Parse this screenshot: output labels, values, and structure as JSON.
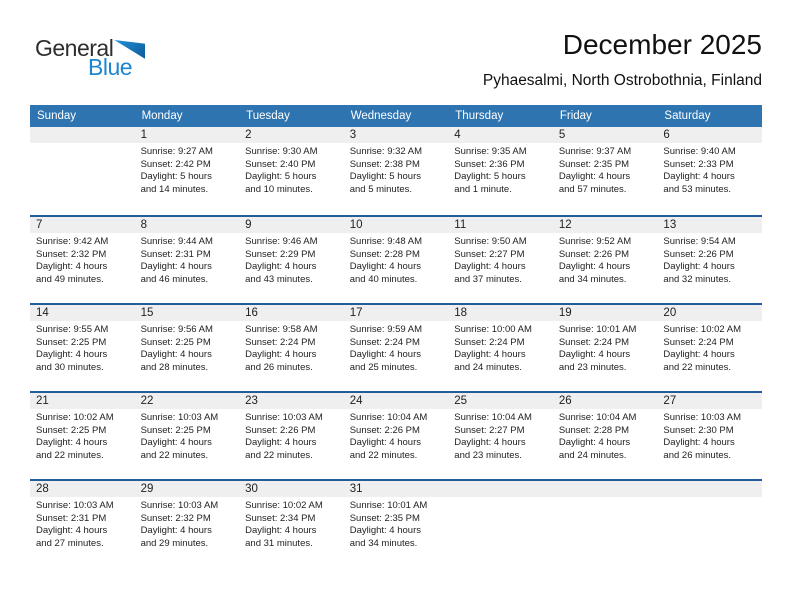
{
  "logo": {
    "part1": "General",
    "part2": "Blue"
  },
  "header": {
    "title": "December 2025",
    "subtitle": "Pyhaesalmi, North Ostrobothnia, Finland"
  },
  "colors": {
    "header_bar": "#2E74B1",
    "week_divider": "#1F5C99",
    "day_band": "#EFEFEF",
    "logo_blue": "#1D86CF"
  },
  "calendar": {
    "day_headers": [
      "Sunday",
      "Monday",
      "Tuesday",
      "Wednesday",
      "Thursday",
      "Friday",
      "Saturday"
    ],
    "weeks": [
      {
        "cells": [
          {
            "day": "",
            "lines": []
          },
          {
            "day": "1",
            "lines": [
              "Sunrise: 9:27 AM",
              "Sunset: 2:42 PM",
              "Daylight: 5 hours",
              "and 14 minutes."
            ]
          },
          {
            "day": "2",
            "lines": [
              "Sunrise: 9:30 AM",
              "Sunset: 2:40 PM",
              "Daylight: 5 hours",
              "and 10 minutes."
            ]
          },
          {
            "day": "3",
            "lines": [
              "Sunrise: 9:32 AM",
              "Sunset: 2:38 PM",
              "Daylight: 5 hours",
              "and 5 minutes."
            ]
          },
          {
            "day": "4",
            "lines": [
              "Sunrise: 9:35 AM",
              "Sunset: 2:36 PM",
              "Daylight: 5 hours",
              "and 1 minute."
            ]
          },
          {
            "day": "5",
            "lines": [
              "Sunrise: 9:37 AM",
              "Sunset: 2:35 PM",
              "Daylight: 4 hours",
              "and 57 minutes."
            ]
          },
          {
            "day": "6",
            "lines": [
              "Sunrise: 9:40 AM",
              "Sunset: 2:33 PM",
              "Daylight: 4 hours",
              "and 53 minutes."
            ]
          }
        ]
      },
      {
        "cells": [
          {
            "day": "7",
            "lines": [
              "Sunrise: 9:42 AM",
              "Sunset: 2:32 PM",
              "Daylight: 4 hours",
              "and 49 minutes."
            ]
          },
          {
            "day": "8",
            "lines": [
              "Sunrise: 9:44 AM",
              "Sunset: 2:31 PM",
              "Daylight: 4 hours",
              "and 46 minutes."
            ]
          },
          {
            "day": "9",
            "lines": [
              "Sunrise: 9:46 AM",
              "Sunset: 2:29 PM",
              "Daylight: 4 hours",
              "and 43 minutes."
            ]
          },
          {
            "day": "10",
            "lines": [
              "Sunrise: 9:48 AM",
              "Sunset: 2:28 PM",
              "Daylight: 4 hours",
              "and 40 minutes."
            ]
          },
          {
            "day": "11",
            "lines": [
              "Sunrise: 9:50 AM",
              "Sunset: 2:27 PM",
              "Daylight: 4 hours",
              "and 37 minutes."
            ]
          },
          {
            "day": "12",
            "lines": [
              "Sunrise: 9:52 AM",
              "Sunset: 2:26 PM",
              "Daylight: 4 hours",
              "and 34 minutes."
            ]
          },
          {
            "day": "13",
            "lines": [
              "Sunrise: 9:54 AM",
              "Sunset: 2:26 PM",
              "Daylight: 4 hours",
              "and 32 minutes."
            ]
          }
        ]
      },
      {
        "cells": [
          {
            "day": "14",
            "lines": [
              "Sunrise: 9:55 AM",
              "Sunset: 2:25 PM",
              "Daylight: 4 hours",
              "and 30 minutes."
            ]
          },
          {
            "day": "15",
            "lines": [
              "Sunrise: 9:56 AM",
              "Sunset: 2:25 PM",
              "Daylight: 4 hours",
              "and 28 minutes."
            ]
          },
          {
            "day": "16",
            "lines": [
              "Sunrise: 9:58 AM",
              "Sunset: 2:24 PM",
              "Daylight: 4 hours",
              "and 26 minutes."
            ]
          },
          {
            "day": "17",
            "lines": [
              "Sunrise: 9:59 AM",
              "Sunset: 2:24 PM",
              "Daylight: 4 hours",
              "and 25 minutes."
            ]
          },
          {
            "day": "18",
            "lines": [
              "Sunrise: 10:00 AM",
              "Sunset: 2:24 PM",
              "Daylight: 4 hours",
              "and 24 minutes."
            ]
          },
          {
            "day": "19",
            "lines": [
              "Sunrise: 10:01 AM",
              "Sunset: 2:24 PM",
              "Daylight: 4 hours",
              "and 23 minutes."
            ]
          },
          {
            "day": "20",
            "lines": [
              "Sunrise: 10:02 AM",
              "Sunset: 2:24 PM",
              "Daylight: 4 hours",
              "and 22 minutes."
            ]
          }
        ]
      },
      {
        "cells": [
          {
            "day": "21",
            "lines": [
              "Sunrise: 10:02 AM",
              "Sunset: 2:25 PM",
              "Daylight: 4 hours",
              "and 22 minutes."
            ]
          },
          {
            "day": "22",
            "lines": [
              "Sunrise: 10:03 AM",
              "Sunset: 2:25 PM",
              "Daylight: 4 hours",
              "and 22 minutes."
            ]
          },
          {
            "day": "23",
            "lines": [
              "Sunrise: 10:03 AM",
              "Sunset: 2:26 PM",
              "Daylight: 4 hours",
              "and 22 minutes."
            ]
          },
          {
            "day": "24",
            "lines": [
              "Sunrise: 10:04 AM",
              "Sunset: 2:26 PM",
              "Daylight: 4 hours",
              "and 22 minutes."
            ]
          },
          {
            "day": "25",
            "lines": [
              "Sunrise: 10:04 AM",
              "Sunset: 2:27 PM",
              "Daylight: 4 hours",
              "and 23 minutes."
            ]
          },
          {
            "day": "26",
            "lines": [
              "Sunrise: 10:04 AM",
              "Sunset: 2:28 PM",
              "Daylight: 4 hours",
              "and 24 minutes."
            ]
          },
          {
            "day": "27",
            "lines": [
              "Sunrise: 10:03 AM",
              "Sunset: 2:30 PM",
              "Daylight: 4 hours",
              "and 26 minutes."
            ]
          }
        ]
      },
      {
        "cells": [
          {
            "day": "28",
            "lines": [
              "Sunrise: 10:03 AM",
              "Sunset: 2:31 PM",
              "Daylight: 4 hours",
              "and 27 minutes."
            ]
          },
          {
            "day": "29",
            "lines": [
              "Sunrise: 10:03 AM",
              "Sunset: 2:32 PM",
              "Daylight: 4 hours",
              "and 29 minutes."
            ]
          },
          {
            "day": "30",
            "lines": [
              "Sunrise: 10:02 AM",
              "Sunset: 2:34 PM",
              "Daylight: 4 hours",
              "and 31 minutes."
            ]
          },
          {
            "day": "31",
            "lines": [
              "Sunrise: 10:01 AM",
              "Sunset: 2:35 PM",
              "Daylight: 4 hours",
              "and 34 minutes."
            ]
          },
          {
            "day": "",
            "lines": []
          },
          {
            "day": "",
            "lines": []
          },
          {
            "day": "",
            "lines": []
          }
        ]
      }
    ]
  }
}
